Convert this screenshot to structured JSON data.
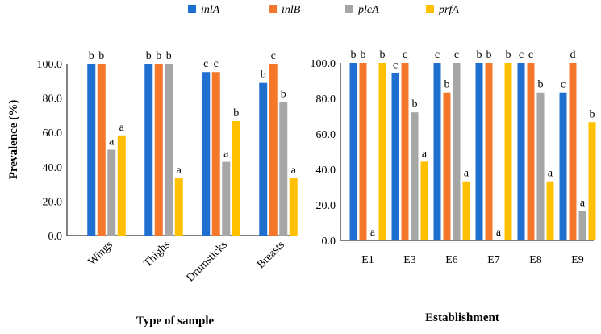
{
  "legend": [
    {
      "name": "inlA",
      "color": "#1f6fd1"
    },
    {
      "name": "inlB",
      "color": "#f5782a"
    },
    {
      "name": "plcA",
      "color": "#a6a6a6"
    },
    {
      "name": "prfA",
      "color": "#ffc000"
    }
  ],
  "chart_data": [
    {
      "type": "bar",
      "categories": [
        "Wings",
        "Thighs",
        "Drumsticks",
        "Breasts"
      ],
      "series": [
        {
          "name": "inlA",
          "values": [
            100.0,
            100.0,
            95.2,
            88.9
          ],
          "letters": [
            "b",
            "b",
            "c",
            "b"
          ]
        },
        {
          "name": "inlB",
          "values": [
            100.0,
            100.0,
            95.2,
            100.0
          ],
          "letters": [
            "b",
            "b",
            "c",
            "c"
          ]
        },
        {
          "name": "plcA",
          "values": [
            50.0,
            100.0,
            42.9,
            77.8
          ],
          "letters": [
            "a",
            "b",
            "a",
            "b"
          ]
        },
        {
          "name": "prfA",
          "values": [
            58.3,
            33.3,
            66.7,
            33.3
          ],
          "letters": [
            "a",
            "a",
            "b",
            "a"
          ]
        }
      ],
      "ylabel": "Prevalence (%)",
      "xlabel": "Type of sample",
      "ylim": [
        0,
        100
      ],
      "yticks": [
        "0.0",
        "20.0",
        "40.0",
        "60.0",
        "80.0",
        "100.0"
      ],
      "grid": false,
      "legend_position": "top"
    },
    {
      "type": "bar",
      "categories": [
        "E1",
        "E3",
        "E6",
        "E7",
        "E8",
        "E9"
      ],
      "series": [
        {
          "name": "inlA",
          "values": [
            100.0,
            94.4,
            100.0,
            100.0,
            100.0,
            83.3
          ],
          "letters": [
            "b",
            "c",
            "c",
            "b",
            "c",
            "c"
          ]
        },
        {
          "name": "inlB",
          "values": [
            100.0,
            100.0,
            83.3,
            100.0,
            100.0,
            100.0
          ],
          "letters": [
            "b",
            "c",
            "b",
            "b",
            "c",
            "d"
          ]
        },
        {
          "name": "plcA",
          "values": [
            0.0,
            72.2,
            100.0,
            0.0,
            83.3,
            16.7
          ],
          "letters": [
            "a",
            "b",
            "c",
            "a",
            "b",
            "a"
          ]
        },
        {
          "name": "prfA",
          "values": [
            100.0,
            44.4,
            33.3,
            100.0,
            33.3,
            66.7
          ],
          "letters": [
            "b",
            "a",
            "a",
            "b",
            "a",
            "b"
          ]
        }
      ],
      "xlabel": "Establishment",
      "ylim": [
        0,
        100
      ],
      "yticks": [
        "0.0",
        "20.0",
        "40.0",
        "60.0",
        "80.0",
        "100.0"
      ],
      "grid": false,
      "legend_position": "top"
    }
  ]
}
